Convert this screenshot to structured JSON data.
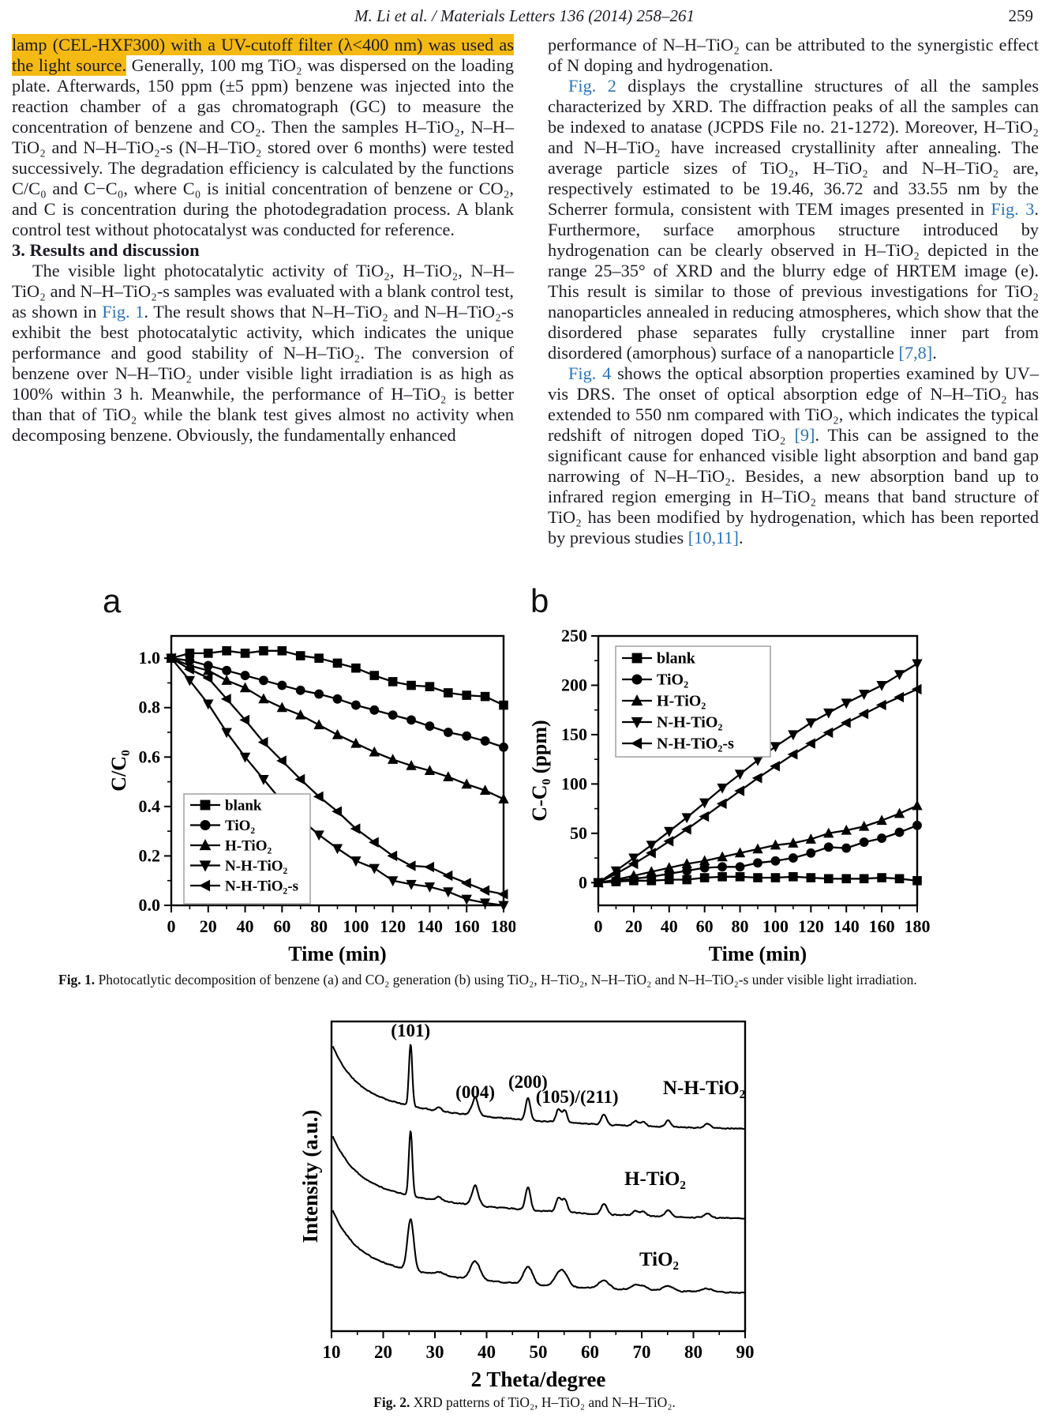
{
  "colors": {
    "link": "#2d74b5",
    "highlight": "#f5b913",
    "text": "#1c1c24",
    "plot": "#000000"
  },
  "header": {
    "center": "M. Li et al. / Materials Letters 136 (2014) 258–261",
    "page_number": "259"
  },
  "left_column": {
    "para1": {
      "segments": [
        {
          "t": "lamp (CEL-HXF300) with a UV-cutoff filter (λ<400 nm) was used as the light source.",
          "s": "highlight"
        },
        {
          "t": " Generally, 100 mg TiO₂ was dispersed on the loading plate. Afterwards, 150 ppm (±5 ppm) benzene was injected into the reaction chamber of a gas chromatograph (GC) to measure the concentration of benzene and CO₂. Then the samples H–TiO₂, N–H–TiO₂ and N–H–TiO₂-s (N–H–TiO₂ stored over 6 months) were tested successively. The degradation efficiency is calculated by the functions C/C₀ and C−C₀, where C₀ is initial concentration of benzene or CO₂, and C is concentration during the photodegradation process. A blank control test without photocatalyst was conducted for reference.",
          "s": "plain"
        }
      ]
    },
    "heading": "3. Results and discussion",
    "para2": {
      "segments": [
        {
          "t": "The visible light photocatalytic activity of TiO₂, H–TiO₂, N–H–TiO₂ and N–H–TiO₂-s samples was evaluated with a blank control test, as shown in ",
          "s": "plain"
        },
        {
          "t": "Fig. 1",
          "s": "link"
        },
        {
          "t": ". The result shows that N–H–TiO₂ and N–H–TiO₂-s exhibit the best photocatalytic activity, which indicates the unique performance and good stability of N–H–TiO₂. The conversion of benzene over N–H–TiO₂ under visible light irradiation is as high as 100% within 3 h. Meanwhile, the performance of H–TiO₂ is better than that of TiO₂ while the blank test gives almost no activity when decomposing benzene. Obviously, the fundamentally enhanced",
          "s": "plain"
        }
      ]
    }
  },
  "right_column": {
    "para1": {
      "segments": [
        {
          "t": "performance of N–H–TiO₂ can be attributed to the synergistic effect of N doping and hydrogenation.",
          "s": "plain"
        }
      ]
    },
    "para2": {
      "segments": [
        {
          "t": "Fig. 2",
          "s": "link"
        },
        {
          "t": " displays the crystalline structures of all the samples characterized by XRD. The diffraction peaks of all the samples can be indexed to anatase (JCPDS File no. 21-1272). Moreover, H–TiO₂ and N–H–TiO₂ have increased crystallinity after annealing. The average particle sizes of TiO₂, H–TiO₂ and N–H–TiO₂ are, respectively estimated to be 19.46, 36.72 and 33.55 nm by the Scherrer formula, consistent with TEM images presented in ",
          "s": "plain"
        },
        {
          "t": "Fig. 3",
          "s": "link"
        },
        {
          "t": ". Furthermore, surface amorphous structure introduced by hydrogenation can be clearly observed in H–TiO₂ depicted in the range 25–35° of XRD and the blurry edge of HRTEM image (e). This result is similar to those of previous investigations for TiO₂ nanoparticles annealed in reducing atmospheres, which show that the disordered phase separates fully crystalline inner part from disordered (amorphous) surface of a nanoparticle ",
          "s": "plain"
        },
        {
          "t": "[7,8]",
          "s": "link"
        },
        {
          "t": ".",
          "s": "plain"
        }
      ]
    },
    "para3": {
      "segments": [
        {
          "t": "Fig. 4",
          "s": "link"
        },
        {
          "t": " shows the optical absorption properties examined by UV–vis DRS. The onset of optical absorption edge of N–H–TiO₂ has extended to 550 nm compared with TiO₂, which indicates the typical redshift of nitrogen doped TiO₂ ",
          "s": "plain"
        },
        {
          "t": "[9]",
          "s": "link"
        },
        {
          "t": ". This can be assigned to the significant cause for enhanced visible light absorption and band gap narrowing of N–H–TiO₂. Besides, a new absorption band up to infrared region emerging in H–TiO₂ means that band structure of TiO₂ has been modified by hydrogenation, which has been reported by previous studies ",
          "s": "plain"
        },
        {
          "t": "[10,11]",
          "s": "link"
        },
        {
          "t": ".",
          "s": "plain"
        }
      ]
    }
  },
  "figure1": {
    "panel_a_label": "a",
    "panel_b_label": "b",
    "caption": {
      "segments": [
        {
          "t": "Fig. 1.",
          "s": "bold"
        },
        {
          "t": " Photocatlytic decomposition of benzene (a) and CO₂ generation (b) using TiO₂, H–TiO₂, N–H–TiO₂ and N–H–TiO₂-s under visible light irradiation.",
          "s": "plain"
        }
      ]
    }
  },
  "figure2": {
    "caption": {
      "segments": [
        {
          "t": "Fig. 2.",
          "s": "bold"
        },
        {
          "t": " XRD patterns of TiO₂, H–TiO₂ and N–H–TiO₂.",
          "s": "plain"
        }
      ]
    }
  },
  "chart_data": [
    {
      "id": "fig1a",
      "type": "line",
      "title": "",
      "xlabel": "Time (min)",
      "ylabel": "C/C₀",
      "xlim": [
        0,
        180
      ],
      "ylim": [
        0,
        1.09
      ],
      "xticks": [
        0,
        20,
        40,
        60,
        80,
        100,
        120,
        140,
        160,
        180
      ],
      "yticks": [
        0.0,
        0.2,
        0.4,
        0.6,
        0.8,
        1.0
      ],
      "ytick_labels": [
        "0.0",
        "0.2",
        "0.4",
        "0.6",
        "0.8",
        "1.0"
      ],
      "legend_position": "lower-left",
      "grid": false,
      "x": [
        0,
        10,
        20,
        30,
        40,
        50,
        60,
        70,
        80,
        90,
        100,
        110,
        120,
        130,
        140,
        150,
        160,
        170,
        180
      ],
      "series": [
        {
          "name": "blank",
          "marker": "square",
          "values": [
            1.0,
            1.02,
            1.02,
            1.03,
            1.02,
            1.03,
            1.03,
            1.01,
            1.0,
            0.98,
            0.96,
            0.93,
            0.905,
            0.89,
            0.885,
            0.86,
            0.85,
            0.845,
            0.81
          ]
        },
        {
          "name": "TiO₂",
          "marker": "circle",
          "values": [
            1.0,
            0.99,
            0.97,
            0.95,
            0.93,
            0.91,
            0.89,
            0.87,
            0.855,
            0.835,
            0.81,
            0.79,
            0.77,
            0.75,
            0.725,
            0.7,
            0.685,
            0.665,
            0.64
          ]
        },
        {
          "name": "H-TiO₂",
          "marker": "triangle-up",
          "values": [
            1.0,
            0.97,
            0.95,
            0.91,
            0.88,
            0.835,
            0.8,
            0.77,
            0.73,
            0.69,
            0.655,
            0.62,
            0.59,
            0.565,
            0.545,
            0.52,
            0.49,
            0.465,
            0.43
          ]
        },
        {
          "name": "N-H-TiO₂",
          "marker": "triangle-down",
          "values": [
            1.0,
            0.91,
            0.815,
            0.7,
            0.6,
            0.51,
            0.42,
            0.35,
            0.285,
            0.23,
            0.18,
            0.15,
            0.1,
            0.085,
            0.075,
            0.055,
            0.025,
            0.01,
            0.0
          ]
        },
        {
          "name": "N-H-TiO₂-s",
          "marker": "triangle-left",
          "values": [
            1.0,
            0.955,
            0.92,
            0.835,
            0.75,
            0.66,
            0.585,
            0.51,
            0.44,
            0.38,
            0.31,
            0.255,
            0.2,
            0.16,
            0.155,
            0.12,
            0.09,
            0.06,
            0.045
          ]
        }
      ]
    },
    {
      "id": "fig1b",
      "type": "line",
      "title": "",
      "xlabel": "Time (min)",
      "ylabel": "C-C₀ (ppm)",
      "xlim": [
        0,
        180
      ],
      "ylim": [
        -23,
        250
      ],
      "xticks": [
        0,
        20,
        40,
        60,
        80,
        100,
        120,
        140,
        160,
        180
      ],
      "yticks": [
        0,
        50,
        100,
        150,
        200,
        250
      ],
      "ytick_labels": [
        "0",
        "50",
        "100",
        "150",
        "200",
        "250"
      ],
      "legend_position": "upper-left",
      "grid": false,
      "x": [
        0,
        10,
        20,
        30,
        40,
        50,
        60,
        70,
        80,
        90,
        100,
        110,
        120,
        130,
        140,
        150,
        160,
        170,
        180
      ],
      "series": [
        {
          "name": "blank",
          "marker": "square",
          "values": [
            0,
            1,
            2,
            2,
            3,
            3,
            5,
            6,
            6,
            5,
            5,
            6,
            5,
            4,
            4,
            4,
            5,
            4,
            2
          ]
        },
        {
          "name": "TiO₂",
          "marker": "circle",
          "values": [
            0,
            2,
            4,
            6,
            9,
            12,
            15,
            16,
            16,
            20,
            22,
            25,
            30,
            36,
            35,
            41,
            45,
            51,
            58
          ]
        },
        {
          "name": "H-TiO₂",
          "marker": "triangle-up",
          "values": [
            0,
            3,
            7,
            11,
            15,
            19,
            22,
            26,
            30,
            34,
            38,
            40,
            44,
            50,
            53,
            57,
            63,
            70,
            78
          ]
        },
        {
          "name": "N-H-TiO₂",
          "marker": "triangle-down",
          "values": [
            0,
            12,
            25,
            38,
            52,
            66,
            81,
            96,
            110,
            124,
            138,
            150,
            162,
            172,
            182,
            191,
            200,
            211,
            222
          ]
        },
        {
          "name": "N-H-TiO₂-s",
          "marker": "triangle-left",
          "values": [
            0,
            9,
            19,
            30,
            42,
            54,
            67,
            80,
            93,
            106,
            118,
            130,
            141,
            152,
            162,
            171,
            180,
            188,
            196
          ]
        }
      ]
    },
    {
      "id": "fig2",
      "type": "xrd",
      "title": "",
      "xlabel": "2 Theta/degree",
      "ylabel": "Intensity (a.u.)",
      "xlim": [
        10,
        90
      ],
      "xticks": [
        10,
        20,
        30,
        40,
        50,
        60,
        70,
        80,
        90
      ],
      "grid": false,
      "traces": [
        {
          "name": "N-H-TiO₂",
          "baseline": 0.355,
          "width_scale": 1.0,
          "peak_scale": 1.0,
          "seed": 11
        },
        {
          "name": "H-TiO₂",
          "baseline": 0.645,
          "width_scale": 1.05,
          "peak_scale": 1.05,
          "seed": 29
        },
        {
          "name": "TiO₂",
          "baseline": 0.885,
          "width_scale": 1.9,
          "peak_scale": 0.82,
          "seed": 47
        }
      ],
      "peaks": [
        {
          "pos": 25.3,
          "h": 0.2,
          "w": 0.32
        },
        {
          "pos": 30.8,
          "h": 0.012,
          "w": 0.5
        },
        {
          "pos": 37.0,
          "h": 0.015,
          "w": 0.42
        },
        {
          "pos": 37.8,
          "h": 0.056,
          "w": 0.42
        },
        {
          "pos": 38.6,
          "h": 0.013,
          "w": 0.42
        },
        {
          "pos": 48.0,
          "h": 0.07,
          "w": 0.46
        },
        {
          "pos": 53.9,
          "h": 0.042,
          "w": 0.46
        },
        {
          "pos": 55.1,
          "h": 0.04,
          "w": 0.46
        },
        {
          "pos": 62.7,
          "h": 0.032,
          "w": 0.52
        },
        {
          "pos": 68.8,
          "h": 0.015,
          "w": 0.52
        },
        {
          "pos": 70.3,
          "h": 0.013,
          "w": 0.52
        },
        {
          "pos": 75.1,
          "h": 0.02,
          "w": 0.55
        },
        {
          "pos": 82.7,
          "h": 0.013,
          "w": 0.58
        }
      ],
      "background": {
        "amp": 0.155,
        "decay": 4.2,
        "amp2": 0.13,
        "decay2": 30
      },
      "noise": 0.0035,
      "peak_labels": [
        {
          "text": "(101)",
          "x": 25.3
        },
        {
          "text": "(004)",
          "x": 37.8
        },
        {
          "text": "(200)",
          "x": 48.0
        },
        {
          "text": "(105)/(211)",
          "x": 57.5
        }
      ]
    }
  ]
}
